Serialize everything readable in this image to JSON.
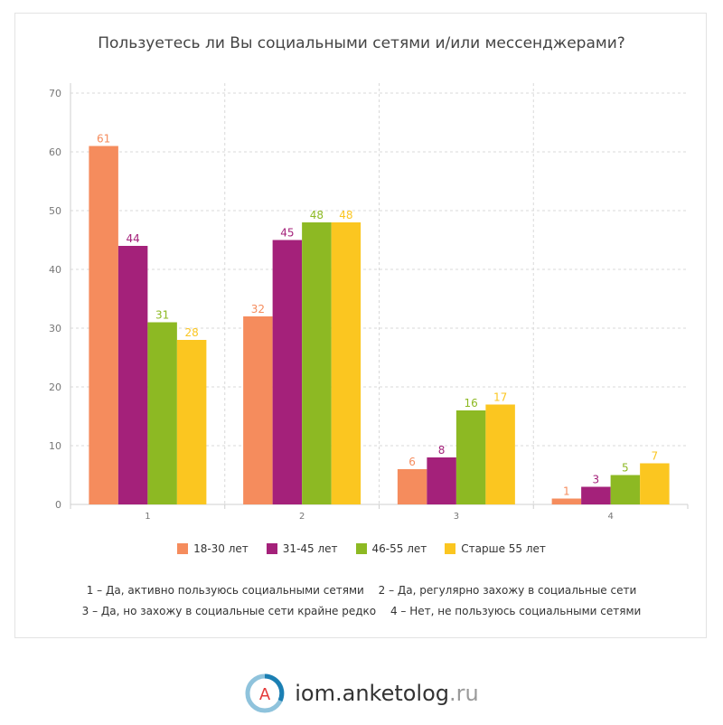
{
  "chart_data": {
    "type": "bar",
    "title": "Пользуетесь ли Вы социальными сетями и/или мессенджерами?",
    "categories": [
      "1",
      "2",
      "3",
      "4"
    ],
    "series": [
      {
        "name": "18-30 лет",
        "color": "#f58c5d",
        "values": [
          61,
          32,
          6,
          1
        ]
      },
      {
        "name": "31-45 лет",
        "color": "#a4217a",
        "values": [
          44,
          45,
          8,
          3
        ]
      },
      {
        "name": "46-55 лет",
        "color": "#8db923",
        "values": [
          31,
          48,
          16,
          5
        ]
      },
      {
        "name": "Старше 55 лет",
        "color": "#fbc620",
        "values": [
          28,
          48,
          17,
          7
        ]
      }
    ],
    "ylim": [
      0,
      70
    ],
    "yticks": [
      0,
      10,
      20,
      30,
      40,
      50,
      60,
      70
    ],
    "grid": true,
    "legend": "bottom"
  },
  "notes": {
    "line1": [
      "1 – Да, активно пользуюсь социальными сетями",
      "2 – Да, регулярно захожу в социальные сети"
    ],
    "line2": [
      "3 – Да, но захожу в социальные сети крайне редко",
      "4 – Нет, не пользуюсь социальными сетями"
    ]
  },
  "brand": {
    "name": "iom.anketolog",
    "tld": ".ru",
    "logo_letter": "A",
    "logo_icon": "anketolog-logo-icon"
  }
}
